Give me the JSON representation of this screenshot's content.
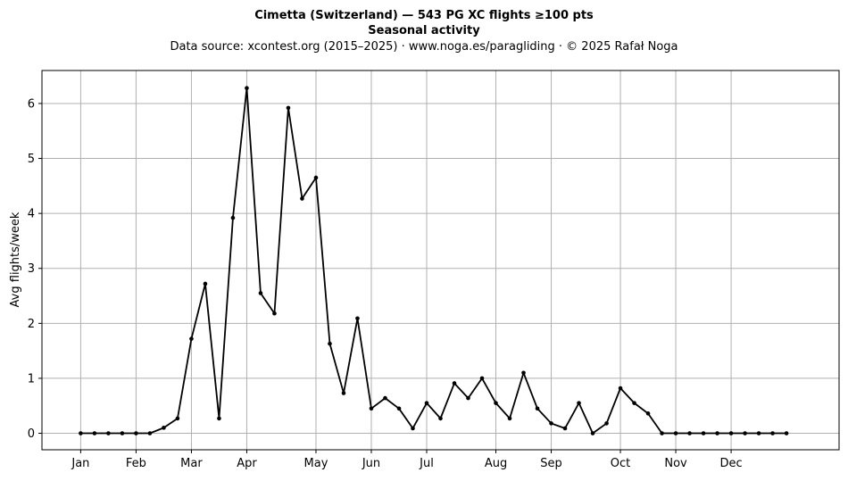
{
  "chart_data": {
    "type": "line",
    "title": "Cimetta (Switzerland)  —  543 PG XC flights ≥100 pts",
    "subtitle": "Seasonal activity",
    "source": "Data source: xcontest.org (2015–2025)  ·  www.noga.es/paragliding  ·  © 2025 Rafał Noga",
    "xlabel": "",
    "ylabel": "Avg flights/week",
    "ylim": [
      -0.3,
      6.6
    ],
    "xlim": [
      -2.8,
      54.8
    ],
    "grid": true,
    "line_color": "#000000",
    "grid_color": "#b0b0b0",
    "x_ticks": [
      {
        "label": "Jan",
        "x": 0
      },
      {
        "label": "Feb",
        "x": 4
      },
      {
        "label": "Mar",
        "x": 8
      },
      {
        "label": "Apr",
        "x": 12
      },
      {
        "label": "May",
        "x": 17
      },
      {
        "label": "Jun",
        "x": 21
      },
      {
        "label": "Jul",
        "x": 25
      },
      {
        "label": "Aug",
        "x": 30
      },
      {
        "label": "Sep",
        "x": 34
      },
      {
        "label": "Oct",
        "x": 39
      },
      {
        "label": "Nov",
        "x": 43
      },
      {
        "label": "Dec",
        "x": 47
      }
    ],
    "y_ticks": [
      0,
      1,
      2,
      3,
      4,
      5,
      6
    ],
    "series": [
      {
        "values": [
          0,
          0,
          0,
          0,
          0,
          0,
          0.1,
          0.27,
          1.72,
          2.72,
          0.27,
          3.92,
          6.28,
          2.55,
          2.18,
          5.92,
          4.27,
          4.65,
          1.63,
          0.73,
          2.09,
          0.45,
          0.64,
          0.45,
          0.09,
          0.55,
          0.27,
          0.91,
          0.64,
          1.0,
          0.55,
          0.27,
          1.1,
          0.45,
          0.18,
          0.09,
          0.55,
          0.0,
          0.18,
          0.82,
          0.55,
          0.36,
          0,
          0,
          0,
          0,
          0,
          0,
          0,
          0,
          0,
          0
        ]
      }
    ]
  }
}
